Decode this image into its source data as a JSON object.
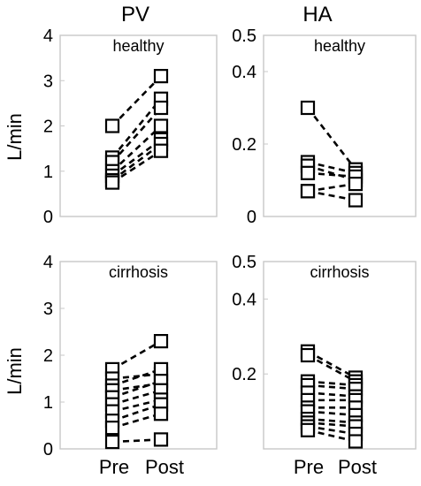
{
  "columns": [
    "PV",
    "HA"
  ],
  "ylabel": "L/min",
  "x_ticks": [
    "Pre",
    "Post"
  ],
  "chart_data": [
    {
      "type": "scatter",
      "column": "PV",
      "group": "healthy",
      "ylabel": "L/min",
      "categories": [
        "Pre",
        "Post"
      ],
      "ylim": [
        0,
        4
      ],
      "yticks": [
        "0",
        "1",
        "2",
        "3",
        "4"
      ],
      "pairs": [
        [
          2.0,
          3.1
        ],
        [
          1.3,
          2.6
        ],
        [
          1.2,
          2.4
        ],
        [
          1.0,
          2.0
        ],
        [
          0.9,
          1.7
        ],
        [
          0.8,
          1.6
        ],
        [
          0.75,
          1.45
        ]
      ]
    },
    {
      "type": "scatter",
      "column": "HA",
      "group": "healthy",
      "categories": [
        "Pre",
        "Post"
      ],
      "ylim": [
        0,
        0.5
      ],
      "yticks": [
        "0",
        "0.2",
        "0.4",
        "0.5"
      ],
      "ytick_values": [
        0,
        0.2,
        0.4,
        0.5
      ],
      "pairs": [
        [
          0.3,
          0.13
        ],
        [
          0.15,
          0.12
        ],
        [
          0.14,
          0.1
        ],
        [
          0.12,
          0.11
        ],
        [
          0.07,
          0.09
        ],
        [
          0.07,
          0.045
        ]
      ]
    },
    {
      "type": "scatter",
      "column": "PV",
      "group": "cirrhosis",
      "ylabel": "L/min",
      "categories": [
        "Pre",
        "Post"
      ],
      "ylim": [
        0,
        4
      ],
      "yticks": [
        "0",
        "1",
        "2",
        "3",
        "4"
      ],
      "pairs": [
        [
          1.7,
          2.3
        ],
        [
          1.5,
          1.6
        ],
        [
          1.35,
          1.7
        ],
        [
          1.25,
          1.4
        ],
        [
          1.1,
          1.45
        ],
        [
          0.95,
          1.25
        ],
        [
          0.8,
          1.05
        ],
        [
          0.6,
          0.95
        ],
        [
          0.45,
          0.75
        ],
        [
          0.15,
          0.2
        ]
      ]
    },
    {
      "type": "scatter",
      "column": "HA",
      "group": "cirrhosis",
      "categories": [
        "Pre",
        "Post"
      ],
      "ylim": [
        0,
        0.5
      ],
      "yticks": [
        "0.2",
        "0.4",
        "0.5"
      ],
      "ytick_values": [
        0.2,
        0.4,
        0.5
      ],
      "pairs": [
        [
          0.26,
          0.19
        ],
        [
          0.25,
          0.18
        ],
        [
          0.18,
          0.17
        ],
        [
          0.17,
          0.16
        ],
        [
          0.15,
          0.14
        ],
        [
          0.13,
          0.13
        ],
        [
          0.11,
          0.11
        ],
        [
          0.1,
          0.09
        ],
        [
          0.08,
          0.07
        ],
        [
          0.07,
          0.06
        ],
        [
          0.06,
          0.04
        ],
        [
          0.05,
          0.02
        ]
      ]
    }
  ]
}
